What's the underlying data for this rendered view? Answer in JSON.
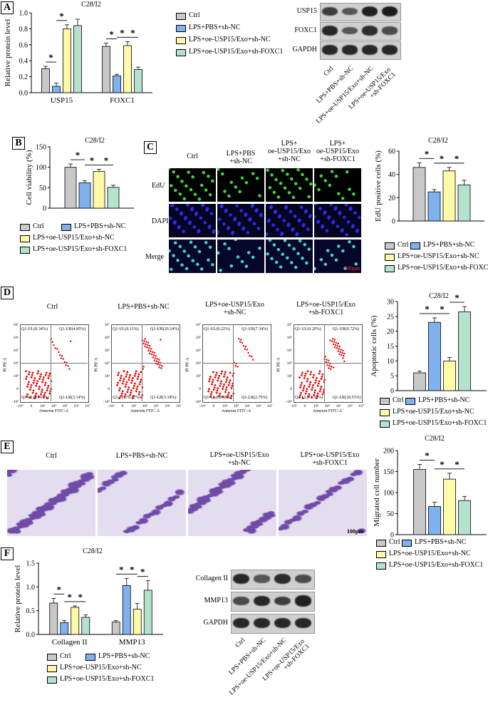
{
  "colors": {
    "ctrl": "#c8c8c8",
    "lps": "#7fb2ec",
    "oe": "#fffaa8",
    "fox": "#b5e2cc"
  },
  "legend": {
    "ctrl": "Ctrl",
    "lps": "LPS+PBS+sh-NC",
    "oe": "LPS+oe-USP15/Exo+sh-NC",
    "fox": "LPS+oe-USP15/Exo+sh-FOXC1"
  },
  "panel_labels": {
    "a": "A",
    "b": "B",
    "c": "C",
    "d": "D",
    "e": "E",
    "f": "F"
  },
  "sig_mark": "*",
  "chart_data": [
    {
      "panel": "A",
      "type": "bar",
      "title": "C28/I2",
      "ylabel": "Relative protein level",
      "ylim": [
        0,
        1.0
      ],
      "yticks": [
        "0.0",
        "0.2",
        "0.4",
        "0.6",
        "0.8",
        "1.0"
      ],
      "categories": [
        "USP15",
        "FOXC1"
      ],
      "series": [
        {
          "name": "Ctrl",
          "values": [
            0.3,
            0.58
          ],
          "err": [
            0.03,
            0.04
          ]
        },
        {
          "name": "LPS+PBS+sh-NC",
          "values": [
            0.08,
            0.21
          ],
          "err": [
            0.04,
            0.02
          ]
        },
        {
          "name": "LPS+oe-USP15/Exo+sh-NC",
          "values": [
            0.8,
            0.59
          ],
          "err": [
            0.05,
            0.05
          ]
        },
        {
          "name": "LPS+oe-USP15/Exo+sh-FOXC1",
          "values": [
            0.84,
            0.29
          ],
          "err": [
            0.08,
            0.03
          ]
        }
      ]
    },
    {
      "panel": "B",
      "type": "bar",
      "title": "C28/I2",
      "ylabel": "Cell viability (%)",
      "ylim": [
        0,
        150
      ],
      "yticks": [
        "0",
        "50",
        "100",
        "150"
      ],
      "categories": [
        ""
      ],
      "series": [
        {
          "name": "Ctrl",
          "values": [
            100
          ],
          "err": [
            8
          ]
        },
        {
          "name": "LPS+PBS+sh-NC",
          "values": [
            62
          ],
          "err": [
            5
          ]
        },
        {
          "name": "LPS+oe-USP15/Exo+sh-NC",
          "values": [
            90
          ],
          "err": [
            5
          ]
        },
        {
          "name": "LPS+oe-USP15/Exo+sh-FOXC1",
          "values": [
            51
          ],
          "err": [
            5
          ]
        }
      ]
    },
    {
      "panel": "C",
      "type": "bar",
      "title": "C28/I2",
      "ylabel": "EdU positive cells (%)",
      "ylim": [
        0,
        60
      ],
      "yticks": [
        "0",
        "20",
        "40",
        "60"
      ],
      "categories": [
        ""
      ],
      "series": [
        {
          "name": "Ctrl",
          "values": [
            46
          ],
          "err": [
            4
          ]
        },
        {
          "name": "LPS+PBS+sh-NC",
          "values": [
            25
          ],
          "err": [
            2
          ]
        },
        {
          "name": "LPS+oe-USP15/Exo+sh-NC",
          "values": [
            43
          ],
          "err": [
            3
          ]
        },
        {
          "name": "LPS+oe-USP15/Exo+sh-FOXC1",
          "values": [
            31
          ],
          "err": [
            4
          ]
        }
      ]
    },
    {
      "panel": "D",
      "type": "bar",
      "title": "C28/I2",
      "ylabel": "Apoptotic cells (%)",
      "ylim": [
        0,
        30
      ],
      "yticks": [
        "0",
        "5",
        "10",
        "15",
        "20",
        "25",
        "30"
      ],
      "categories": [
        ""
      ],
      "series": [
        {
          "name": "Ctrl",
          "values": [
            6
          ],
          "err": [
            0.6
          ]
        },
        {
          "name": "LPS+PBS+sh-NC",
          "values": [
            23
          ],
          "err": [
            1.5
          ]
        },
        {
          "name": "LPS+oe-USP15/Exo+sh-NC",
          "values": [
            10
          ],
          "err": [
            1.2
          ]
        },
        {
          "name": "LPS+oe-USP15/Exo+sh-FOXC1",
          "values": [
            26.5
          ],
          "err": [
            1.8
          ]
        }
      ]
    },
    {
      "panel": "E",
      "type": "bar",
      "title": "C28/I2",
      "ylabel": "Migrated cell number",
      "ylim": [
        0,
        200
      ],
      "yticks": [
        "0",
        "50",
        "100",
        "150",
        "200"
      ],
      "categories": [
        ""
      ],
      "series": [
        {
          "name": "Ctrl",
          "values": [
            155
          ],
          "err": [
            12
          ]
        },
        {
          "name": "LPS+PBS+sh-NC",
          "values": [
            67
          ],
          "err": [
            10
          ]
        },
        {
          "name": "LPS+oe-USP15/Exo+sh-NC",
          "values": [
            132
          ],
          "err": [
            14
          ]
        },
        {
          "name": "LPS+oe-USP15/Exo+sh-FOXC1",
          "values": [
            81
          ],
          "err": [
            10
          ]
        }
      ]
    },
    {
      "panel": "F",
      "type": "bar",
      "title": "C28/I2",
      "ylabel": "Relative protein level",
      "ylim": [
        0,
        1.5
      ],
      "yticks": [
        "0.0",
        "0.5",
        "1.0",
        "1.5"
      ],
      "categories": [
        "Collagen II",
        "MMP13"
      ],
      "series": [
        {
          "name": "Ctrl",
          "values": [
            0.66,
            0.26
          ],
          "err": [
            0.1,
            0.03
          ]
        },
        {
          "name": "LPS+PBS+sh-NC",
          "values": [
            0.25,
            1.03
          ],
          "err": [
            0.04,
            0.15
          ]
        },
        {
          "name": "LPS+oe-USP15/Exo+sh-NC",
          "values": [
            0.57,
            0.53
          ],
          "err": [
            0.03,
            0.12
          ]
        },
        {
          "name": "LPS+oe-USP15/Exo+sh-FOXC1",
          "values": [
            0.36,
            0.93
          ],
          "err": [
            0.05,
            0.2
          ]
        }
      ]
    }
  ],
  "blot_a": {
    "rows": [
      "USP15",
      "FOXC1",
      "GAPDH"
    ],
    "lanes": [
      "Ctrl",
      "LPS+PBS+sh-NC",
      "LPS+oe-USP15/Exo+sh-NC",
      "LPS+oe-USP15/Exo\n+sh-FOXC1"
    ],
    "intensity": [
      [
        0.7,
        0.5,
        0.95,
        1.0
      ],
      [
        0.9,
        0.5,
        0.85,
        0.6
      ],
      [
        0.9,
        0.9,
        0.9,
        0.9
      ]
    ]
  },
  "blot_f": {
    "rows": [
      "Collagen II",
      "MMP13",
      "GAPDH"
    ],
    "lanes": [
      "Ctrl",
      "LPS+PBS+sh-NC",
      "LPS+oe-USP15/Exo+sh-NC",
      "LPS+oe-USP15/Exo\n+sh-FOXC1"
    ],
    "intensity": [
      [
        0.9,
        0.5,
        0.85,
        0.6
      ],
      [
        0.6,
        0.9,
        0.7,
        0.95
      ],
      [
        0.9,
        0.9,
        0.9,
        0.9
      ]
    ]
  },
  "panel_c": {
    "columns": [
      "Ctrl",
      "LPS+PBS\n+sh-NC",
      "LPS+\noe-USP15/Exo\n+sh-NC",
      "LPS+\noe-USP15/Exo\n+sh-FOXC1"
    ],
    "rows": [
      "EdU",
      "DAPI",
      "Merge"
    ],
    "scale": "100μm"
  },
  "panel_d": {
    "columns": [
      "Ctrl",
      "LPS+PBS+sh-NC",
      "LPS+oe-USP15/Exo\n+sh-NC",
      "LPS+oe-USP15/Exo\n+sh-FOXC1"
    ],
    "quadrants": [
      [
        "Q1-UL(0.34%)",
        "Q1-UR(4.85%)",
        "Q1-LL(91.67%)",
        "Q1-LR(3.14%)"
      ],
      [
        "Q1-UL(0.11%)",
        "Q1-UR(20.24%)",
        "Q1-LL(76.47%)",
        "Q1-LR(3.18%)"
      ],
      [
        "Q1-UL(0.22%)",
        "Q1-UR(7.34%)",
        "Q1-LL(89.68%)",
        "Q1-LR(2.76%)"
      ],
      [
        "Q1-UL(0.20%)",
        "Q1-UR(9.72%)",
        "Q1-LL(71.55%)",
        "Q1-LR(18.53%)"
      ]
    ],
    "xlabel": "Annexin FITC-A",
    "ylabel": "PI PE-A",
    "xticks": [
      "-10³",
      "0",
      "10³",
      "10⁴",
      "10⁵",
      "10⁶",
      "10⁷"
    ],
    "yticks": [
      "10⁷",
      "10⁶",
      "10⁵",
      "10⁴",
      "10³",
      "0",
      "-10³"
    ]
  },
  "panel_e": {
    "columns": [
      "Ctrl",
      "LPS+PBS+sh-NC",
      "LPS+oe-USP15/Exo\n+sh-NC",
      "LPS+oe-USP15/Exo\n+sh-FOXC1"
    ],
    "scale": "100μm"
  }
}
